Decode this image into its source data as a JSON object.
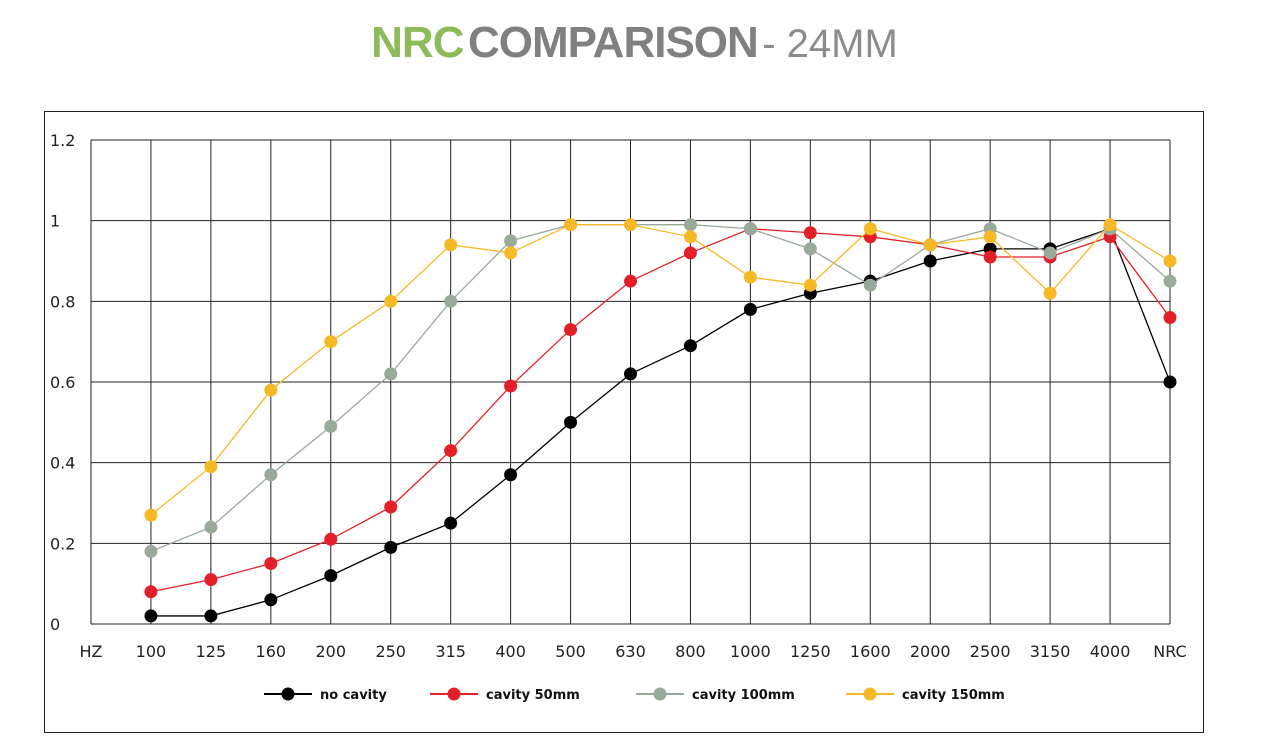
{
  "title": {
    "part1": "NRC",
    "part2": "COMPARISON",
    "part3": "- 24MM"
  },
  "chart_data": {
    "type": "line",
    "categories": [
      "HZ",
      "100",
      "125",
      "160",
      "200",
      "250",
      "315",
      "400",
      "500",
      "630",
      "800",
      "1000",
      "1250",
      "1600",
      "2000",
      "2500",
      "3150",
      "4000",
      "NRC"
    ],
    "ylim": [
      0,
      1.2
    ],
    "yticks": [
      "0",
      "0.2",
      "0.4",
      "0.6",
      "0.8",
      "1",
      "1.2"
    ],
    "grid": true,
    "legend_position": "bottom",
    "series": [
      {
        "name": "no cavity",
        "color": "#000000",
        "values": [
          null,
          0.02,
          0.02,
          0.06,
          0.12,
          0.19,
          0.25,
          0.37,
          0.5,
          0.62,
          0.69,
          0.78,
          0.82,
          0.85,
          0.9,
          0.93,
          0.93,
          0.98,
          0.6
        ]
      },
      {
        "name": "cavity 50mm",
        "color": "#e3202a",
        "values": [
          null,
          0.08,
          0.11,
          0.15,
          0.21,
          0.29,
          0.43,
          0.59,
          0.73,
          0.85,
          0.92,
          0.98,
          0.97,
          0.96,
          0.94,
          0.91,
          0.91,
          0.96,
          0.76
        ]
      },
      {
        "name": "cavity 100mm",
        "color": "#9aaa9a",
        "values": [
          null,
          0.18,
          0.24,
          0.37,
          0.49,
          0.62,
          0.8,
          0.95,
          0.99,
          0.99,
          0.99,
          0.98,
          0.93,
          0.84,
          0.94,
          0.98,
          0.92,
          0.98,
          0.85
        ]
      },
      {
        "name": "cavity 150mm",
        "color": "#f5b928",
        "values": [
          null,
          0.27,
          0.39,
          0.58,
          0.7,
          0.8,
          0.94,
          0.92,
          0.99,
          0.99,
          0.96,
          0.86,
          0.84,
          0.98,
          0.94,
          0.96,
          0.82,
          0.99,
          0.9
        ]
      }
    ]
  }
}
